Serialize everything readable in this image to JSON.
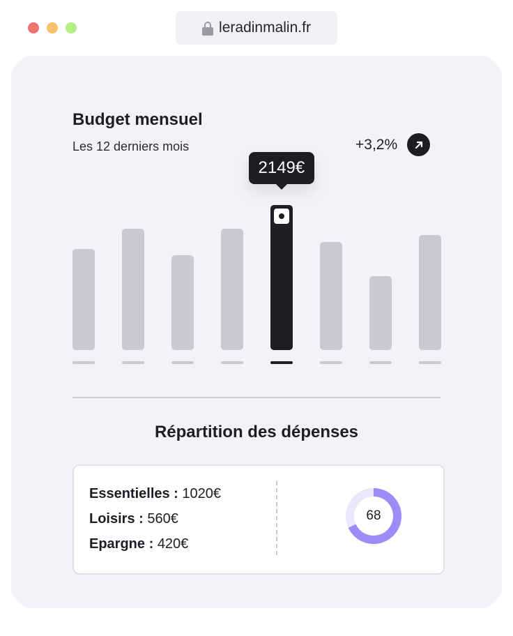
{
  "browser": {
    "url": "leradinmalin.fr",
    "icons": {
      "lock": "lock-icon"
    }
  },
  "budget": {
    "title": "Budget mensuel",
    "subtitle": "Les 12 derniers mois",
    "trend": "+3,2%",
    "trend_icon": "arrow-up-right-icon"
  },
  "chart_data": {
    "type": "bar",
    "values": [
      1500,
      1800,
      1400,
      1800,
      2149,
      1600,
      1100,
      1700
    ],
    "highlight_index": 4,
    "tooltip": "2149€",
    "colors": {
      "bar": "#c9c8d3",
      "active": "#1e1d24"
    }
  },
  "repartition": {
    "title": "Répartition des dépenses",
    "items": [
      {
        "label": "Essentielles :",
        "value": "1020€"
      },
      {
        "label": "Loisirs :",
        "value": "560€"
      },
      {
        "label": "Epargne :",
        "value": "420€"
      }
    ],
    "score": "68",
    "score_fraction": 0.68,
    "colors": {
      "donut_fill": "#9b8cf7",
      "donut_track": "#e9e7fc"
    }
  }
}
